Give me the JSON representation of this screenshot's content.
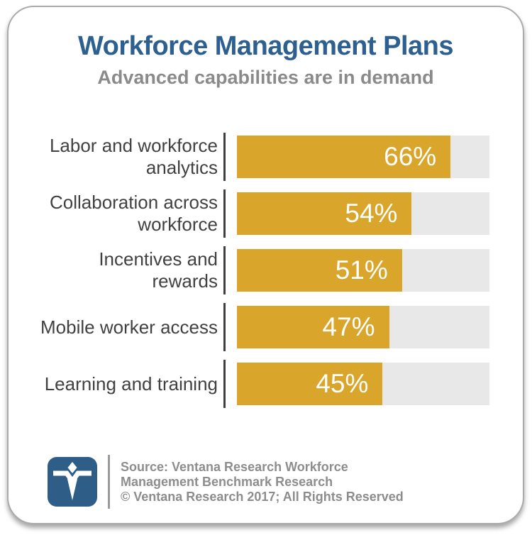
{
  "header": {
    "title": "Workforce Management Plans",
    "subtitle": "Advanced capabilities are in demand"
  },
  "chart_data": {
    "type": "bar",
    "orientation": "horizontal",
    "title": "Workforce Management Plans",
    "subtitle": "Advanced capabilities are in demand",
    "categories": [
      "Labor and workforce analytics",
      "Collaboration across workforce",
      "Incentives and rewards",
      "Mobile worker access",
      "Learning and training"
    ],
    "label_lines": [
      [
        "Labor and workforce",
        "analytics"
      ],
      [
        "Collaboration across",
        "workforce"
      ],
      [
        "Incentives and rewards"
      ],
      [
        "Mobile worker access"
      ],
      [
        "Learning and training"
      ]
    ],
    "values": [
      66,
      54,
      51,
      47,
      45
    ],
    "value_labels": [
      "66%",
      "54%",
      "51%",
      "47%",
      "45%"
    ],
    "unit": "%",
    "xlim": [
      0,
      78
    ],
    "grid": false,
    "legend": "none",
    "bar_color": "#d9a62b",
    "track_color": "#e8e8e8"
  },
  "footer": {
    "logo_name": "ventana-research-logo",
    "source_lines": [
      "Source: Ventana Research Workforce",
      "Management Benchmark Research",
      "© Ventana Research 2017; All Rights Reserved"
    ]
  },
  "colors": {
    "title_blue": "#2d5f90",
    "subtitle_gray": "#8a8a8a",
    "label_gray": "#414141",
    "bar_gold": "#d9a62b",
    "track_gray": "#e8e8e8",
    "tick_dark": "#3f3f3f",
    "logo_blue": "#2e5e88",
    "footer_gray": "#8d8d8d",
    "card_border": "#ababab"
  }
}
